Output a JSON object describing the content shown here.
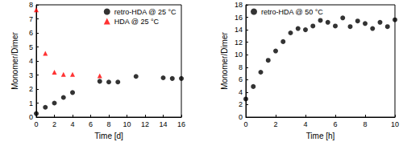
{
  "chart_data": [
    {
      "type": "scatter",
      "xlabel": "Time [d]",
      "ylabel": "Monomer/Dimer",
      "xlim": [
        0,
        16
      ],
      "xticks": [
        0,
        2,
        4,
        6,
        8,
        10,
        12,
        14,
        16
      ],
      "ylim": [
        0,
        8
      ],
      "yticks": [
        0,
        1,
        2,
        3,
        4,
        5,
        6,
        7,
        8
      ],
      "grid": false,
      "legend": "upper right",
      "series": [
        {
          "name": "retro-HDA @ 25 °C",
          "color": "#000000",
          "marker": "circle",
          "x": [
            0,
            1,
            2,
            3,
            4,
            7,
            8,
            9,
            11,
            14,
            15,
            16
          ],
          "values": [
            0.25,
            0.7,
            1.0,
            1.4,
            1.75,
            2.55,
            2.5,
            2.5,
            2.9,
            2.8,
            2.75,
            2.75
          ]
        },
        {
          "name": "HDA @ 25 °C",
          "color": "#ff0000",
          "marker": "triangle",
          "x": [
            0,
            1,
            2,
            3,
            4,
            7
          ],
          "values": [
            7.65,
            4.55,
            3.2,
            3.05,
            3.05,
            2.95
          ]
        }
      ]
    },
    {
      "type": "scatter",
      "xlabel": "Time [h]",
      "ylabel": "Monomer/Dimer",
      "xlim": [
        0,
        10
      ],
      "xticks": [
        0,
        2,
        4,
        6,
        8,
        10
      ],
      "ylim": [
        0,
        18
      ],
      "yticks": [
        0,
        2,
        4,
        6,
        8,
        10,
        12,
        14,
        16,
        18
      ],
      "grid": false,
      "legend": "upper left",
      "series": [
        {
          "name": "retro-HDA @ 50 °C",
          "color": "#000000",
          "marker": "circle",
          "x": [
            0,
            0.5,
            1,
            1.5,
            2,
            2.5,
            3,
            3.5,
            4,
            4.5,
            5,
            5.5,
            6,
            6.5,
            7,
            7.5,
            8,
            8.5,
            9,
            9.5,
            10
          ],
          "values": [
            2.9,
            4.9,
            7.2,
            9.1,
            10.6,
            12.1,
            13.5,
            14.2,
            14.0,
            14.6,
            15.5,
            15.2,
            14.6,
            15.9,
            14.5,
            15.4,
            15.0,
            14.2,
            15.2,
            14.5,
            15.6
          ]
        }
      ]
    }
  ]
}
